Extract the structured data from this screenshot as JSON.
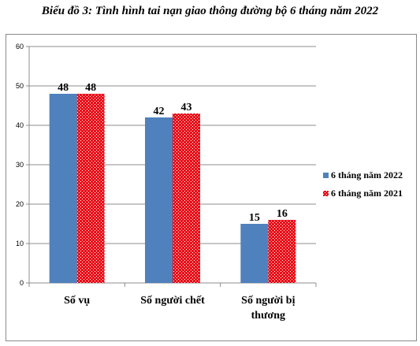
{
  "chart_data": {
    "type": "bar",
    "title": "Biểu đồ 3: Tình hình tai nạn giao thông đường bộ 6 tháng năm 2022",
    "categories": [
      [
        "Số vụ"
      ],
      [
        "Số người chết"
      ],
      [
        "Số người bị",
        "thương"
      ]
    ],
    "series": [
      {
        "name": "6 tháng năm 2022",
        "values": [
          48,
          42,
          15
        ],
        "color": "#4f81bd",
        "pattern": "solid"
      },
      {
        "name": "6 tháng năm 2021",
        "values": [
          48,
          43,
          16
        ],
        "color": "#e8101a",
        "pattern": "dotted"
      }
    ],
    "yticks": [
      "0",
      "10",
      "20",
      "30",
      "40",
      "50",
      "60"
    ],
    "ylim": [
      0,
      60
    ],
    "grid": true,
    "legend": "right"
  }
}
